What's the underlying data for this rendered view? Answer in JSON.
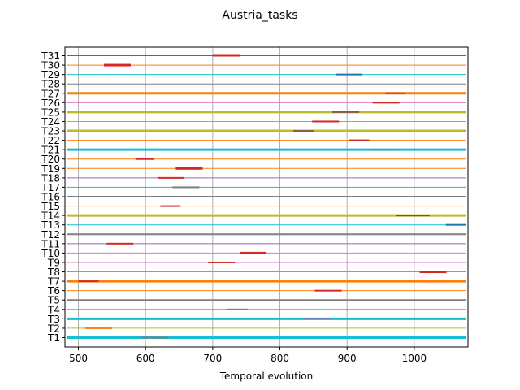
{
  "chart_data": {
    "type": "gantt",
    "title": "Austria_tasks",
    "xlabel": "Temporal evolution",
    "ylabel": "",
    "xlim": [
      480,
      1080
    ],
    "xticks": [
      500,
      600,
      700,
      800,
      900,
      1000
    ],
    "grid": "vertical",
    "tasks": [
      {
        "label": "T1",
        "line_color": "#17becf",
        "line_weight": 3,
        "bar": [
          594,
          634
        ],
        "bar_color": "#7f7f7f",
        "bar_h": 2
      },
      {
        "label": "T2",
        "line_color": "#bcbd22",
        "line_weight": 1,
        "bar": [
          510,
          550
        ],
        "bar_color": "#ff7f0e",
        "bar_h": 2
      },
      {
        "label": "T3",
        "line_color": "#17becf",
        "line_weight": 3,
        "bar": [
          836,
          875
        ],
        "bar_color": "#9467bd",
        "bar_h": 2
      },
      {
        "label": "T4",
        "line_color": "#17becf",
        "line_weight": 1,
        "bar": [
          722,
          752
        ],
        "bar_color": "#7f7f7f",
        "bar_h": 2
      },
      {
        "label": "T5",
        "line_color": "#7f7f7f",
        "line_weight": 2,
        "bar": null,
        "bar_color": null,
        "bar_h": 0
      },
      {
        "label": "T6",
        "line_color": "#ff7f0e",
        "line_weight": 1,
        "bar": [
          852,
          892
        ],
        "bar_color": "#d62728",
        "bar_h": 2
      },
      {
        "label": "T7",
        "line_color": "#ff7f0e",
        "line_weight": 3,
        "bar": [
          500,
          530
        ],
        "bar_color": "#d62728",
        "bar_h": 2
      },
      {
        "label": "T8",
        "line_color": "#ff7f0e",
        "line_weight": 1,
        "bar": [
          1008,
          1048
        ],
        "bar_color": "#d62728",
        "bar_h": 3
      },
      {
        "label": "T9",
        "line_color": "#e377c2",
        "line_weight": 1,
        "bar": [
          693,
          733
        ],
        "bar_color": "#d62728",
        "bar_h": 2
      },
      {
        "label": "T10",
        "line_color": "#e377c2",
        "line_weight": 1,
        "bar": [
          740,
          780
        ],
        "bar_color": "#d62728",
        "bar_h": 3
      },
      {
        "label": "T11",
        "line_color": "#9467bd",
        "line_weight": 1,
        "bar": [
          542,
          582
        ],
        "bar_color": "#d62728",
        "bar_h": 2
      },
      {
        "label": "T12",
        "line_color": "#7f7f7f",
        "line_weight": 2,
        "bar": null,
        "bar_color": null,
        "bar_h": 0
      },
      {
        "label": "T13",
        "line_color": "#17becf",
        "line_weight": 1,
        "bar": [
          1047,
          1077
        ],
        "bar_color": "#1f77b4",
        "bar_h": 2
      },
      {
        "label": "T14",
        "line_color": "#bcbd22",
        "line_weight": 3,
        "bar": [
          973,
          1023
        ],
        "bar_color": "#d62728",
        "bar_h": 2
      },
      {
        "label": "T15",
        "line_color": "#ff7f0e",
        "line_weight": 1,
        "bar": [
          622,
          652
        ],
        "bar_color": "#d62728",
        "bar_h": 2
      },
      {
        "label": "T16",
        "line_color": "#7f7f7f",
        "line_weight": 2,
        "bar": null,
        "bar_color": null,
        "bar_h": 0
      },
      {
        "label": "T17",
        "line_color": "#17becf",
        "line_weight": 1,
        "bar": [
          640,
          680
        ],
        "bar_color": "#7f7f7f",
        "bar_h": 2
      },
      {
        "label": "T18",
        "line_color": "#9467bd",
        "line_weight": 1,
        "bar": [
          618,
          658
        ],
        "bar_color": "#d62728",
        "bar_h": 2
      },
      {
        "label": "T19",
        "line_color": "#ff7f0e",
        "line_weight": 1,
        "bar": [
          645,
          685
        ],
        "bar_color": "#d62728",
        "bar_h": 3
      },
      {
        "label": "T20",
        "line_color": "#ff7f0e",
        "line_weight": 1,
        "bar": [
          585,
          613
        ],
        "bar_color": "#d62728",
        "bar_h": 2
      },
      {
        "label": "T21",
        "line_color": "#17becf",
        "line_weight": 3,
        "bar": [
          938,
          970
        ],
        "bar_color": "#7f7f7f",
        "bar_h": 2
      },
      {
        "label": "T22",
        "line_color": "#ff7f0e",
        "line_weight": 1,
        "bar": [
          903,
          933
        ],
        "bar_color": "#d62728",
        "bar_h": 2
      },
      {
        "label": "T23",
        "line_color": "#bcbd22",
        "line_weight": 3,
        "bar": [
          820,
          850
        ],
        "bar_color": "#8c564b",
        "bar_h": 2
      },
      {
        "label": "T24",
        "line_color": "#e377c2",
        "line_weight": 1,
        "bar": [
          848,
          888
        ],
        "bar_color": "#d62728",
        "bar_h": 2
      },
      {
        "label": "T25",
        "line_color": "#bcbd22",
        "line_weight": 3,
        "bar": [
          878,
          918
        ],
        "bar_color": "#8c564b",
        "bar_h": 2
      },
      {
        "label": "T26",
        "line_color": "#e377c2",
        "line_weight": 1,
        "bar": [
          938,
          978
        ],
        "bar_color": "#d62728",
        "bar_h": 2
      },
      {
        "label": "T27",
        "line_color": "#ff7f0e",
        "line_weight": 3,
        "bar": [
          957,
          987
        ],
        "bar_color": "#d62728",
        "bar_h": 2
      },
      {
        "label": "T28",
        "line_color": "#7f7f7f",
        "line_weight": 1,
        "bar": null,
        "bar_color": null,
        "bar_h": 0
      },
      {
        "label": "T29",
        "line_color": "#17becf",
        "line_weight": 1,
        "bar": [
          883,
          923
        ],
        "bar_color": "#1f77b4",
        "bar_h": 2
      },
      {
        "label": "T30",
        "line_color": "#ff7f0e",
        "line_weight": 1,
        "bar": [
          538,
          578
        ],
        "bar_color": "#d62728",
        "bar_h": 3
      },
      {
        "label": "T31",
        "line_color": "#8c564b",
        "line_weight": 1,
        "bar": [
          700,
          740
        ],
        "bar_color": "#d62728",
        "bar_h": 2
      }
    ]
  }
}
